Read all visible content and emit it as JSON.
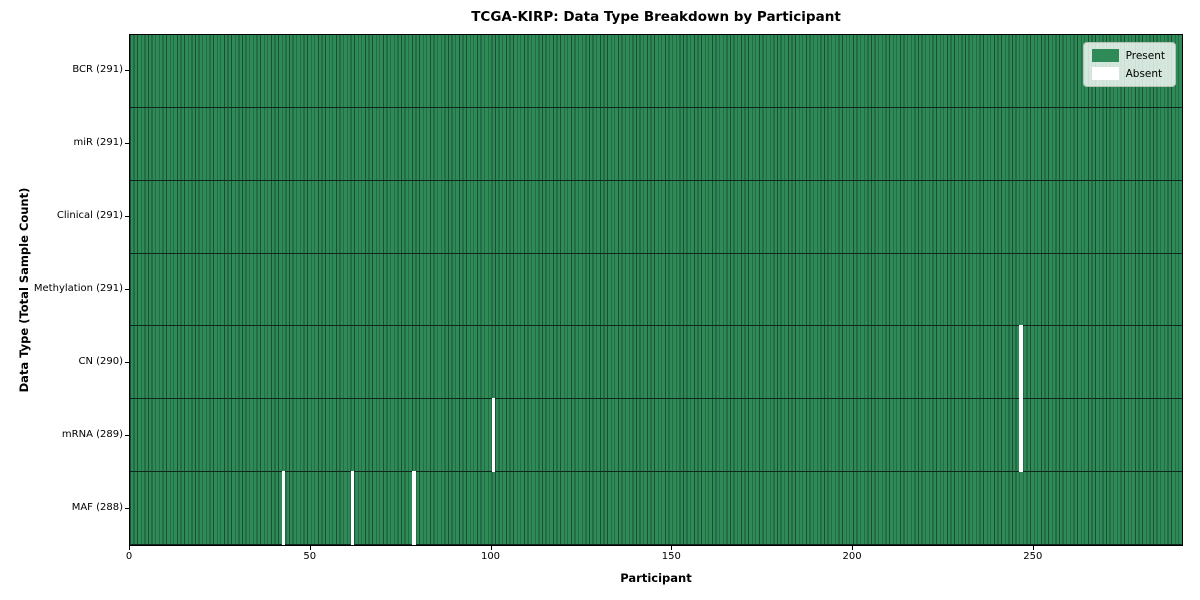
{
  "chart_data": {
    "type": "heatmap",
    "title": "TCGA-KIRP: Data Type Breakdown by Participant",
    "xlabel": "Participant",
    "ylabel": "Data Type (Total Sample Count)",
    "n_participants": 291,
    "x_ticks": [
      0,
      50,
      100,
      150,
      200,
      250
    ],
    "grid": false,
    "legend_position": "upper right",
    "legend": [
      {
        "label": "Present",
        "color": "#2e8b57"
      },
      {
        "label": "Absent",
        "color": "#ffffff"
      }
    ],
    "rows": [
      {
        "label": "BCR",
        "total": 291,
        "tick_label": "BCR (291)",
        "missing_participants": []
      },
      {
        "label": "miR",
        "total": 291,
        "tick_label": "miR (291)",
        "missing_participants": []
      },
      {
        "label": "Clinical",
        "total": 291,
        "tick_label": "Clinical (291)",
        "missing_participants": []
      },
      {
        "label": "Methylation",
        "total": 291,
        "tick_label": "Methylation (291)",
        "missing_participants": []
      },
      {
        "label": "CN",
        "total": 290,
        "tick_label": "CN (290)",
        "missing_participants": [
          246
        ]
      },
      {
        "label": "mRNA",
        "total": 289,
        "tick_label": "mRNA (289)",
        "missing_participants": [
          100,
          246
        ]
      },
      {
        "label": "MAF",
        "total": 288,
        "tick_label": "MAF (288)",
        "missing_participants": [
          42,
          61,
          78
        ]
      }
    ],
    "colors": {
      "present": "#2e8b57",
      "absent": "#ffffff",
      "cell_edge": "#1b4d33",
      "row_divider": "#10271b",
      "plot_border": "#000000"
    }
  }
}
